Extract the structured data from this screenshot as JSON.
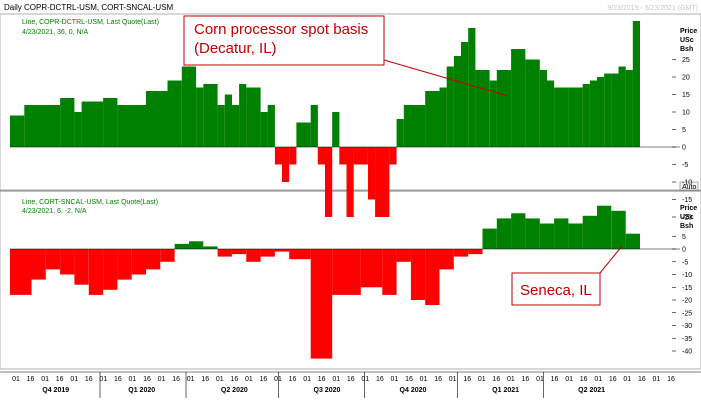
{
  "header": {
    "title": "Daily COPR-DCTRL-USM, CORT-SNCAL-USM",
    "date_range": "9/23/2019 - 5/23/2021 (GMT)"
  },
  "colors": {
    "positive": "#008000",
    "negative": "#ff0000",
    "annotation": "#c00000",
    "legend_green": "#008000"
  },
  "chart_data": [
    {
      "type": "bar",
      "panel": "top",
      "legend": "Line, COPR-DCTRL-USM, Last Quote(Last)",
      "value_text": "4/23/2021, 36, 0, N/A",
      "unit_label": [
        "Price",
        "USc",
        "Bsh"
      ],
      "ylim": [
        -20,
        40
      ],
      "yticks": [
        25,
        20,
        15,
        10,
        5,
        0,
        -5,
        -10,
        -15,
        -20
      ],
      "auto_label": "Auto",
      "annotation": "Corn processor spot basis (Decatur, IL)",
      "annotation_lines": [
        "Corn processor spot basis",
        "(Decatur, IL)"
      ],
      "x_index_range": [
        0,
        88
      ],
      "segments": [
        [
          0,
          2,
          9
        ],
        [
          2,
          7,
          12
        ],
        [
          7,
          9,
          14
        ],
        [
          9,
          10,
          10
        ],
        [
          10,
          13,
          13
        ],
        [
          13,
          15,
          14
        ],
        [
          15,
          19,
          12
        ],
        [
          19,
          22,
          16
        ],
        [
          22,
          24,
          19
        ],
        [
          24,
          26,
          23
        ],
        [
          26,
          27,
          17
        ],
        [
          27,
          29,
          18
        ],
        [
          29,
          30,
          12
        ],
        [
          30,
          31,
          15
        ],
        [
          31,
          32,
          12
        ],
        [
          32,
          33,
          18
        ],
        [
          33,
          35,
          17
        ],
        [
          35,
          36,
          10
        ],
        [
          36,
          37,
          12
        ],
        [
          37,
          38,
          -5
        ],
        [
          38,
          39,
          -10
        ],
        [
          39,
          40,
          -5
        ],
        [
          40,
          42,
          7
        ],
        [
          42,
          43,
          12
        ],
        [
          43,
          44,
          -5
        ],
        [
          44,
          45,
          -20
        ],
        [
          45,
          46,
          10
        ],
        [
          46,
          47,
          -5
        ],
        [
          47,
          48,
          -20
        ],
        [
          48,
          50,
          -5
        ],
        [
          50,
          51,
          -15
        ],
        [
          51,
          53,
          -20
        ],
        [
          53,
          54,
          -5
        ],
        [
          54,
          55,
          8
        ],
        [
          55,
          58,
          12
        ],
        [
          58,
          60,
          16
        ],
        [
          60,
          61,
          17
        ],
        [
          61,
          62,
          23
        ],
        [
          62,
          63,
          26
        ],
        [
          63,
          64,
          30
        ],
        [
          64,
          65,
          34
        ],
        [
          65,
          67,
          22
        ],
        [
          67,
          68,
          19
        ],
        [
          68,
          70,
          22
        ],
        [
          70,
          72,
          28
        ],
        [
          72,
          74,
          25
        ],
        [
          74,
          75,
          22
        ],
        [
          75,
          76,
          19
        ],
        [
          76,
          78,
          17
        ],
        [
          78,
          80,
          17
        ],
        [
          80,
          81,
          18
        ],
        [
          81,
          82,
          19
        ],
        [
          82,
          83,
          20
        ],
        [
          83,
          84,
          21
        ],
        [
          84,
          85,
          21
        ],
        [
          85,
          86,
          23
        ],
        [
          86,
          87,
          22
        ],
        [
          87,
          88,
          36
        ]
      ]
    },
    {
      "type": "bar",
      "panel": "bottom",
      "legend": "Line, CORT-SNCAL-USM, Last Quote(Last)",
      "value_text": "4/23/2021, 6, -2, N/A",
      "unit_label": [
        "Price",
        "USc",
        "Bsh"
      ],
      "ylim": [
        -45,
        30
      ],
      "yticks": [
        5,
        0,
        -5,
        -10,
        -15,
        -20,
        -25,
        -30,
        -35,
        -40
      ],
      "annotation": "Seneca, IL",
      "x_index_range": [
        0,
        88
      ],
      "segments": [
        [
          0,
          3,
          -18
        ],
        [
          3,
          5,
          -12
        ],
        [
          5,
          7,
          -8
        ],
        [
          7,
          9,
          -10
        ],
        [
          9,
          11,
          -14
        ],
        [
          11,
          13,
          -18
        ],
        [
          13,
          15,
          -16
        ],
        [
          15,
          17,
          -12
        ],
        [
          17,
          19,
          -10
        ],
        [
          19,
          21,
          -8
        ],
        [
          21,
          23,
          -5
        ],
        [
          23,
          25,
          2
        ],
        [
          25,
          27,
          3
        ],
        [
          27,
          29,
          1
        ],
        [
          29,
          31,
          -3
        ],
        [
          31,
          33,
          -2
        ],
        [
          33,
          35,
          -5
        ],
        [
          35,
          37,
          -3
        ],
        [
          37,
          39,
          -1
        ],
        [
          39,
          42,
          -4
        ],
        [
          42,
          45,
          -43
        ],
        [
          45,
          49,
          -18
        ],
        [
          49,
          52,
          -15
        ],
        [
          52,
          54,
          -18
        ],
        [
          54,
          56,
          -5
        ],
        [
          56,
          58,
          -20
        ],
        [
          58,
          60,
          -22
        ],
        [
          60,
          62,
          -8
        ],
        [
          62,
          64,
          -3
        ],
        [
          64,
          66,
          -2
        ],
        [
          66,
          68,
          8
        ],
        [
          68,
          70,
          12
        ],
        [
          70,
          72,
          14
        ],
        [
          72,
          74,
          12
        ],
        [
          74,
          76,
          10
        ],
        [
          76,
          78,
          12
        ],
        [
          78,
          80,
          10
        ],
        [
          80,
          82,
          13
        ],
        [
          82,
          84,
          17
        ],
        [
          84,
          86,
          15
        ],
        [
          86,
          88,
          6
        ]
      ]
    }
  ],
  "x_axis": {
    "day_labels": [
      {
        "t": 0,
        "label": "01"
      },
      {
        "t": 2.2,
        "label": "16"
      },
      {
        "t": 4.4,
        "label": "01"
      },
      {
        "t": 6.6,
        "label": "16"
      },
      {
        "t": 8.8,
        "label": "01"
      },
      {
        "t": 11,
        "label": "16"
      },
      {
        "t": 13.2,
        "label": "01"
      },
      {
        "t": 15.4,
        "label": "16"
      },
      {
        "t": 17.6,
        "label": "01"
      },
      {
        "t": 19.8,
        "label": "16"
      },
      {
        "t": 22,
        "label": "01"
      },
      {
        "t": 24.2,
        "label": "16"
      },
      {
        "t": 26.4,
        "label": "01"
      },
      {
        "t": 28.6,
        "label": "16"
      },
      {
        "t": 30.8,
        "label": "01"
      },
      {
        "t": 33,
        "label": "16"
      },
      {
        "t": 35.2,
        "label": "01"
      },
      {
        "t": 37.4,
        "label": "16"
      },
      {
        "t": 39.6,
        "label": "01"
      },
      {
        "t": 41.8,
        "label": "16"
      },
      {
        "t": 44,
        "label": "01"
      },
      {
        "t": 46.2,
        "label": "16"
      },
      {
        "t": 48.4,
        "label": "01"
      },
      {
        "t": 50.6,
        "label": "16"
      },
      {
        "t": 52.8,
        "label": "01"
      },
      {
        "t": 55,
        "label": "16"
      },
      {
        "t": 57.2,
        "label": "01"
      },
      {
        "t": 59.4,
        "label": "16"
      },
      {
        "t": 61.6,
        "label": "01"
      },
      {
        "t": 63.8,
        "label": "16"
      },
      {
        "t": 66,
        "label": "01"
      },
      {
        "t": 68.2,
        "label": "16"
      },
      {
        "t": 70.4,
        "label": "01"
      },
      {
        "t": 72.6,
        "label": "16"
      },
      {
        "t": 74.8,
        "label": "01"
      },
      {
        "t": 77,
        "label": "16"
      },
      {
        "t": 79.2,
        "label": "01"
      },
      {
        "t": 81.4,
        "label": "16"
      },
      {
        "t": 83.6,
        "label": "01"
      },
      {
        "t": 85.8,
        "label": "16"
      },
      {
        "t": 88,
        "label": "01"
      },
      {
        "t": 90.2,
        "label": "16"
      },
      {
        "t": 92.4,
        "label": "01"
      },
      {
        "t": 94.6,
        "label": "16"
      },
      {
        "t": 96.8,
        "label": "01"
      },
      {
        "t": 99,
        "label": "16"
      }
    ],
    "quarters": [
      {
        "t": 6,
        "label": "Q4 2019"
      },
      {
        "t": 19,
        "label": "Q1 2020"
      },
      {
        "t": 33,
        "label": "Q2 2020"
      },
      {
        "t": 47,
        "label": "Q3 2020"
      },
      {
        "t": 60,
        "label": "Q4 2020"
      },
      {
        "t": 74,
        "label": "Q1 2021"
      },
      {
        "t": 87,
        "label": "Q2 2021"
      }
    ],
    "quarter_boundaries": [
      13,
      26,
      40,
      53,
      67,
      80
    ]
  }
}
